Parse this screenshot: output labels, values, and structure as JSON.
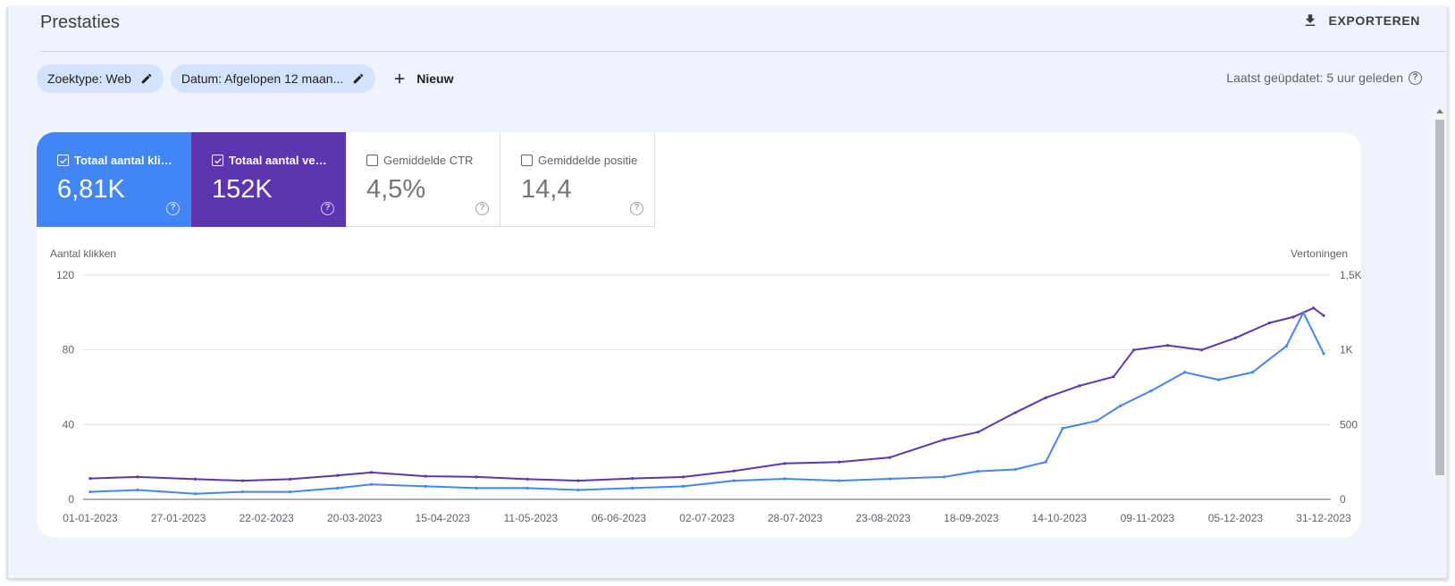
{
  "header": {
    "title": "Prestaties",
    "export_label": "EXPORTEREN"
  },
  "filters": {
    "chips": [
      {
        "label": "Zoektype: Web"
      },
      {
        "label": "Datum: Afgelopen 12 maan..."
      }
    ],
    "new_label": "Nieuw"
  },
  "last_updated": "Laatst geüpdatet: 5 uur geleden",
  "metrics": [
    {
      "label": "Totaal aantal klikk...",
      "value": "6,81K",
      "checked": true,
      "color": "#4285f4"
    },
    {
      "label": "Totaal aantal vert...",
      "value": "152K",
      "checked": true,
      "color": "#5e35b1"
    },
    {
      "label": "Gemiddelde CTR",
      "value": "4,5%",
      "checked": false
    },
    {
      "label": "Gemiddelde positie",
      "value": "14,4",
      "checked": false
    }
  ],
  "chart_data": {
    "type": "line",
    "ylabel_left": "Aantal klikken",
    "ylabel_right": "Vertoningen",
    "y_left_ticks": [
      "0",
      "40",
      "80",
      "120"
    ],
    "y_right_ticks": [
      "0",
      "500",
      "1K",
      "1,5K"
    ],
    "ylim_left": [
      0,
      120
    ],
    "ylim_right": [
      0,
      1500
    ],
    "grid": true,
    "x_ticks": [
      "01-01-2023",
      "27-01-2023",
      "22-02-2023",
      "20-03-2023",
      "15-04-2023",
      "11-05-2023",
      "06-06-2023",
      "02-07-2023",
      "28-07-2023",
      "23-08-2023",
      "18-09-2023",
      "14-10-2023",
      "09-11-2023",
      "05-12-2023",
      "31-12-2023"
    ],
    "x_start": "2023-01-01",
    "x_end": "2023-12-31",
    "series": [
      {
        "name": "Totaal aantal klikken",
        "axis": "left",
        "color": "#4285f4",
        "points": [
          [
            "2023-01-01",
            4
          ],
          [
            "2023-01-15",
            5
          ],
          [
            "2023-02-01",
            3
          ],
          [
            "2023-02-15",
            4
          ],
          [
            "2023-03-01",
            4
          ],
          [
            "2023-03-15",
            6
          ],
          [
            "2023-03-25",
            8
          ],
          [
            "2023-04-10",
            7
          ],
          [
            "2023-04-25",
            6
          ],
          [
            "2023-05-10",
            6
          ],
          [
            "2023-05-25",
            5
          ],
          [
            "2023-06-10",
            6
          ],
          [
            "2023-06-25",
            7
          ],
          [
            "2023-07-10",
            10
          ],
          [
            "2023-07-25",
            11
          ],
          [
            "2023-08-10",
            10
          ],
          [
            "2023-08-25",
            11
          ],
          [
            "2023-09-10",
            12
          ],
          [
            "2023-09-20",
            15
          ],
          [
            "2023-10-01",
            16
          ],
          [
            "2023-10-10",
            20
          ],
          [
            "2023-10-15",
            38
          ],
          [
            "2023-10-25",
            42
          ],
          [
            "2023-11-01",
            50
          ],
          [
            "2023-11-10",
            58
          ],
          [
            "2023-11-20",
            68
          ],
          [
            "2023-11-30",
            64
          ],
          [
            "2023-12-10",
            68
          ],
          [
            "2023-12-20",
            82
          ],
          [
            "2023-12-25",
            100
          ],
          [
            "2023-12-31",
            78
          ]
        ]
      },
      {
        "name": "Totaal aantal vertoningen",
        "axis": "right",
        "color": "#5e35b1",
        "points": [
          [
            "2023-01-01",
            140
          ],
          [
            "2023-01-15",
            150
          ],
          [
            "2023-02-01",
            135
          ],
          [
            "2023-02-15",
            125
          ],
          [
            "2023-03-01",
            135
          ],
          [
            "2023-03-15",
            160
          ],
          [
            "2023-03-25",
            180
          ],
          [
            "2023-04-10",
            155
          ],
          [
            "2023-04-25",
            150
          ],
          [
            "2023-05-10",
            135
          ],
          [
            "2023-05-25",
            125
          ],
          [
            "2023-06-10",
            140
          ],
          [
            "2023-06-25",
            150
          ],
          [
            "2023-07-10",
            190
          ],
          [
            "2023-07-25",
            240
          ],
          [
            "2023-08-10",
            250
          ],
          [
            "2023-08-25",
            280
          ],
          [
            "2023-09-10",
            400
          ],
          [
            "2023-09-20",
            450
          ],
          [
            "2023-10-01",
            580
          ],
          [
            "2023-10-10",
            680
          ],
          [
            "2023-10-20",
            760
          ],
          [
            "2023-10-30",
            820
          ],
          [
            "2023-11-05",
            1000
          ],
          [
            "2023-11-15",
            1030
          ],
          [
            "2023-11-25",
            1000
          ],
          [
            "2023-12-05",
            1080
          ],
          [
            "2023-12-15",
            1180
          ],
          [
            "2023-12-22",
            1220
          ],
          [
            "2023-12-28",
            1280
          ],
          [
            "2023-12-31",
            1230
          ]
        ]
      }
    ]
  }
}
